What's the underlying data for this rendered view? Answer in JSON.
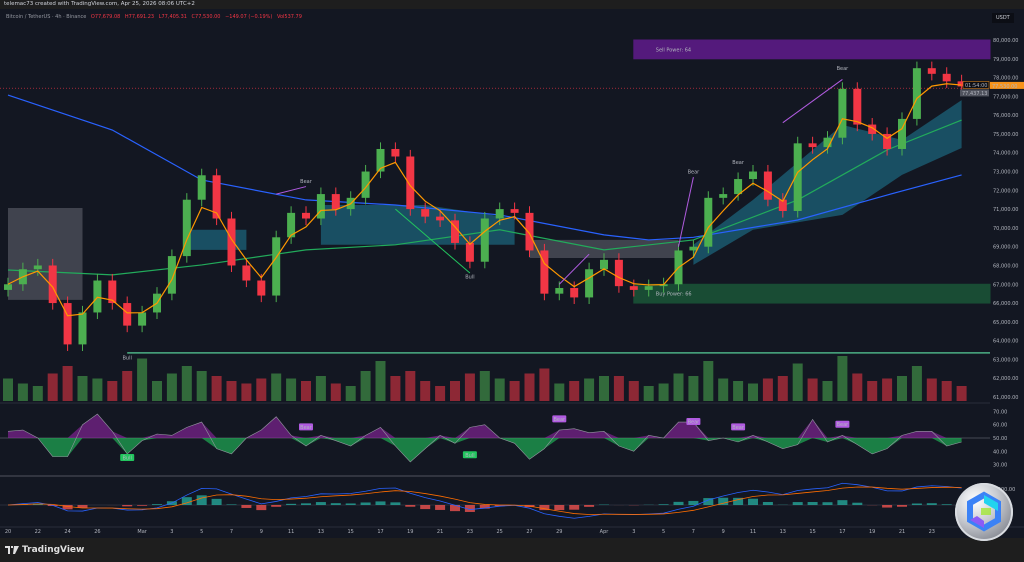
{
  "header": {
    "attribution": "telemac73 created with TradingView.com, Apr 25, 2026 08:06 UTC+2"
  },
  "legend": {
    "symbol": "Bitcoin / TetherUS · 4h · Binance",
    "open": "O77,679.08",
    "high": "H77,691.23",
    "low": "L77,405.31",
    "close": "C77,530.00",
    "change": "−149.07 (−0.19%)",
    "volume": "Vol537.79"
  },
  "price_axis": {
    "currency": "USDT",
    "last_price": "77,530.00",
    "countdown": "01:54:00",
    "marker_price": "77,437.13"
  },
  "footer": {
    "brand": "TradingView"
  },
  "colors": {
    "bg": "#131722",
    "up": "#4caf50",
    "down": "#f23645",
    "fast_ma": "#ff9800",
    "slow_ma_blue": "#2962ff",
    "slow_ma_green": "#22ab5b",
    "cloud": "#1b5e74",
    "bear": "#9c27b0",
    "bull": "#22c55e"
  },
  "chart_data": [
    {
      "type": "candlestick",
      "pane": "price",
      "ylim": [
        61000,
        80000
      ],
      "y_ticks": [
        "80,000.00",
        "79,000.00",
        "78,000.00",
        "77,000.00",
        "76,000.00",
        "75,000.00",
        "74,000.00",
        "73,000.00",
        "72,000.00",
        "71,000.00",
        "70,000.00",
        "69,000.00",
        "68,000.00",
        "67,000.00",
        "66,000.00",
        "65,000.00",
        "64,000.00",
        "63,000.00",
        "62,000.00",
        "61,000.00"
      ],
      "x_ticks": [
        {
          "label": "20",
          "date": "2026-02-20"
        },
        {
          "label": "22",
          "date": "2026-02-22"
        },
        {
          "label": "24",
          "date": "2026-02-24"
        },
        {
          "label": "26",
          "date": "2026-02-26"
        },
        {
          "label": "Mar",
          "date": "2026-03-01"
        },
        {
          "label": "3",
          "date": "2026-03-03"
        },
        {
          "label": "5",
          "date": "2026-03-05"
        },
        {
          "label": "7",
          "date": "2026-03-07"
        },
        {
          "label": "9",
          "date": "2026-03-09"
        },
        {
          "label": "11",
          "date": "2026-03-11"
        },
        {
          "label": "13",
          "date": "2026-03-13"
        },
        {
          "label": "15",
          "date": "2026-03-15"
        },
        {
          "label": "17",
          "date": "2026-03-17"
        },
        {
          "label": "19",
          "date": "2026-03-19"
        },
        {
          "label": "21",
          "date": "2026-03-21"
        },
        {
          "label": "23",
          "date": "2026-03-23"
        },
        {
          "label": "25",
          "date": "2026-03-25"
        },
        {
          "label": "27",
          "date": "2026-03-27"
        },
        {
          "label": "29",
          "date": "2026-03-29"
        },
        {
          "label": "Apr",
          "date": "2026-04-01"
        },
        {
          "label": "3",
          "date": "2026-04-03"
        },
        {
          "label": "5",
          "date": "2026-04-05"
        },
        {
          "label": "7",
          "date": "2026-04-07"
        },
        {
          "label": "9",
          "date": "2026-04-09"
        },
        {
          "label": "11",
          "date": "2026-04-11"
        },
        {
          "label": "13",
          "date": "2026-04-13"
        },
        {
          "label": "15",
          "date": "2026-04-15"
        },
        {
          "label": "17",
          "date": "2026-04-17"
        },
        {
          "label": "19",
          "date": "2026-04-19"
        },
        {
          "label": "21",
          "date": "2026-04-21"
        },
        {
          "label": "23",
          "date": "2026-04-23"
        }
      ],
      "bars_date_close_volume": [
        [
          "2026-02-20",
          67000,
          45
        ],
        [
          "2026-02-21",
          67800,
          35
        ],
        [
          "2026-02-22",
          68000,
          30
        ],
        [
          "2026-02-23",
          66000,
          55
        ],
        [
          "2026-02-24",
          63800,
          70
        ],
        [
          "2026-02-25",
          65500,
          50
        ],
        [
          "2026-02-26",
          67200,
          45
        ],
        [
          "2026-02-27",
          66000,
          40
        ],
        [
          "2026-02-28",
          64800,
          60
        ],
        [
          "2026-03-01",
          65500,
          85
        ],
        [
          "2026-03-02",
          66500,
          40
        ],
        [
          "2026-03-03",
          68500,
          55
        ],
        [
          "2026-03-04",
          71500,
          70
        ],
        [
          "2026-03-05",
          72800,
          60
        ],
        [
          "2026-03-06",
          70500,
          50
        ],
        [
          "2026-03-07",
          68000,
          40
        ],
        [
          "2026-03-08",
          67200,
          35
        ],
        [
          "2026-03-09",
          66400,
          45
        ],
        [
          "2026-03-10",
          69500,
          55
        ],
        [
          "2026-03-11",
          70800,
          45
        ],
        [
          "2026-03-12",
          70500,
          40
        ],
        [
          "2026-03-13",
          71800,
          50
        ],
        [
          "2026-03-14",
          71000,
          35
        ],
        [
          "2026-03-15",
          71600,
          30
        ],
        [
          "2026-03-16",
          73000,
          60
        ],
        [
          "2026-03-17",
          74200,
          80
        ],
        [
          "2026-03-18",
          73800,
          50
        ],
        [
          "2026-03-19",
          71000,
          60
        ],
        [
          "2026-03-20",
          70600,
          40
        ],
        [
          "2026-03-21",
          70400,
          30
        ],
        [
          "2026-03-22",
          69200,
          40
        ],
        [
          "2026-03-23",
          68200,
          55
        ],
        [
          "2026-03-24",
          70500,
          60
        ],
        [
          "2026-03-25",
          71000,
          45
        ],
        [
          "2026-03-26",
          70800,
          40
        ],
        [
          "2026-03-27",
          68800,
          55
        ],
        [
          "2026-03-28",
          66500,
          65
        ],
        [
          "2026-03-29",
          66800,
          35
        ],
        [
          "2026-03-30",
          66300,
          40
        ],
        [
          "2026-03-31",
          67800,
          45
        ],
        [
          "2026-04-01",
          68300,
          50
        ],
        [
          "2026-04-02",
          66900,
          50
        ],
        [
          "2026-04-03",
          66700,
          40
        ],
        [
          "2026-04-04",
          66900,
          30
        ],
        [
          "2026-04-05",
          67000,
          35
        ],
        [
          "2026-04-06",
          68800,
          55
        ],
        [
          "2026-04-07",
          69000,
          50
        ],
        [
          "2026-04-08",
          71600,
          80
        ],
        [
          "2026-04-09",
          71800,
          45
        ],
        [
          "2026-04-10",
          72600,
          40
        ],
        [
          "2026-04-11",
          73000,
          35
        ],
        [
          "2026-04-12",
          71500,
          45
        ],
        [
          "2026-04-13",
          70900,
          50
        ],
        [
          "2026-04-14",
          74500,
          75
        ],
        [
          "2026-04-15",
          74300,
          45
        ],
        [
          "2026-04-16",
          74800,
          40
        ],
        [
          "2026-04-17",
          77400,
          90
        ],
        [
          "2026-04-18",
          75500,
          55
        ],
        [
          "2026-04-19",
          75000,
          40
        ],
        [
          "2026-04-20",
          74200,
          45
        ],
        [
          "2026-04-21",
          75800,
          50
        ],
        [
          "2026-04-22",
          78500,
          70
        ],
        [
          "2026-04-23",
          78200,
          45
        ],
        [
          "2026-04-24",
          77800,
          40
        ],
        [
          "2026-04-25",
          77530,
          30
        ]
      ],
      "ma_blue": [
        [
          "2026-02-20",
          77070
        ],
        [
          "2026-02-27",
          75210
        ],
        [
          "2026-03-05",
          72550
        ],
        [
          "2026-03-12",
          71490
        ],
        [
          "2026-03-18",
          71220
        ],
        [
          "2026-03-25",
          70690
        ],
        [
          "2026-04-01",
          69630
        ],
        [
          "2026-04-04",
          69360
        ],
        [
          "2026-04-07",
          69500
        ],
        [
          "2026-04-14",
          70420
        ],
        [
          "2026-04-20",
          71750
        ],
        [
          "2026-04-25",
          72820
        ]
      ],
      "ma_green": [
        [
          "2026-02-20",
          67760
        ],
        [
          "2026-02-27",
          67500
        ],
        [
          "2026-03-05",
          68030
        ],
        [
          "2026-03-12",
          68830
        ],
        [
          "2026-03-18",
          69100
        ],
        [
          "2026-03-25",
          69900
        ],
        [
          "2026-04-01",
          68830
        ],
        [
          "2026-04-07",
          69360
        ],
        [
          "2026-04-14",
          71490
        ],
        [
          "2026-04-20",
          74150
        ],
        [
          "2026-04-25",
          75740
        ]
      ],
      "cloud_teal": [
        [
          [
            "2026-03-04",
            69900,
            68830
          ],
          [
            "2026-03-08",
            69900,
            68830
          ]
        ],
        [
          [
            "2026-03-13",
            71220,
            69100
          ],
          [
            "2026-03-20",
            71220,
            69100
          ],
          [
            "2026-03-26",
            70500,
            69100
          ]
        ],
        [
          [
            "2026-04-07",
            69100,
            68030
          ],
          [
            "2026-04-11",
            71490,
            69900
          ],
          [
            "2026-04-17",
            75480,
            70690
          ],
          [
            "2026-04-21",
            74680,
            72820
          ],
          [
            "2026-04-25",
            76800,
            74250
          ]
        ]
      ],
      "cloud_gray": [
        [
          [
            "2026-02-20",
            71060,
            66170
          ],
          [
            "2026-02-25",
            71060,
            66170
          ]
        ],
        [
          [
            "2026-03-27",
            69360,
            68400
          ],
          [
            "2026-04-06",
            69360,
            68400
          ]
        ]
      ],
      "zones": [
        {
          "label": "Sell Power: 64",
          "from": "2026-04-03",
          "top": 80000,
          "bottom": 79000,
          "color": "#6a1b9a"
        },
        {
          "label": "Buy Power: 66",
          "from": "2026-04-03",
          "top": 67000,
          "bottom": 66000,
          "color": "#1b5e3a"
        }
      ],
      "support_line": {
        "from": "2026-02-28",
        "price": 63350
      },
      "signals": [
        {
          "label": "Bear",
          "date": "2026-03-12",
          "price": 72400,
          "type": "bear"
        },
        {
          "label": "Bear",
          "date": "2026-04-07",
          "price": 72900,
          "type": "bear"
        },
        {
          "label": "Bear",
          "date": "2026-04-10",
          "price": 73400,
          "type": "bear"
        },
        {
          "label": "Bear",
          "date": "2026-04-17",
          "price": 78400,
          "type": "bear"
        },
        {
          "label": "Bull",
          "date": "2026-03-23",
          "price": 67300,
          "type": "bull"
        },
        {
          "label": "Bull",
          "date": "2026-02-28",
          "price": 63000,
          "type": "bull"
        }
      ],
      "divergences": [
        {
          "from": [
            "2026-03-10",
            71800
          ],
          "to": [
            "2026-03-12",
            72200
          ],
          "type": "bear"
        },
        {
          "from": [
            "2026-04-06",
            69000
          ],
          "to": [
            "2026-04-07",
            72700
          ],
          "type": "bear"
        },
        {
          "from": [
            "2026-04-13",
            75600
          ],
          "to": [
            "2026-04-17",
            77900
          ],
          "type": "bear"
        },
        {
          "from": [
            "2026-03-18",
            71000
          ],
          "to": [
            "2026-03-23",
            67600
          ],
          "type": "bull"
        },
        {
          "from": [
            "2026-03-29",
            67000
          ],
          "to": [
            "2026-03-31",
            68600
          ],
          "type": "bear"
        }
      ]
    },
    {
      "type": "area",
      "pane": "oscillator",
      "ylim": [
        25,
        75
      ],
      "midline": 50,
      "y_ticks": [
        "70.00",
        "60.00",
        "50.00",
        "40.00",
        "30.00"
      ],
      "values": [
        55,
        56,
        50,
        36,
        36,
        60,
        68,
        55,
        38,
        48,
        53,
        52,
        58,
        62,
        42,
        38,
        50,
        56,
        66,
        52,
        44,
        52,
        48,
        44,
        52,
        58,
        44,
        32,
        42,
        52,
        46,
        58,
        60,
        50,
        46,
        34,
        42,
        56,
        57,
        54,
        55,
        44,
        40,
        52,
        50,
        62,
        62,
        48,
        50,
        47,
        52,
        47,
        42,
        45,
        64,
        47,
        52,
        45,
        38,
        42,
        52,
        55,
        55,
        44,
        47
      ],
      "signals": [
        {
          "label": "Bear",
          "date": "2026-03-12",
          "value": 58,
          "type": "bear"
        },
        {
          "label": "Bear",
          "date": "2026-03-29",
          "value": 64,
          "type": "bear"
        },
        {
          "label": "Bear",
          "date": "2026-04-07",
          "value": 62,
          "type": "bear"
        },
        {
          "label": "Bear",
          "date": "2026-04-10",
          "value": 58,
          "type": "bear"
        },
        {
          "label": "Bear",
          "date": "2026-04-17",
          "value": 60,
          "type": "bear"
        },
        {
          "label": "Bull",
          "date": "2026-02-28",
          "value": 35,
          "type": "bull"
        },
        {
          "label": "Bull",
          "date": "2026-03-23",
          "value": 37,
          "type": "bull"
        }
      ]
    },
    {
      "type": "bar",
      "pane": "macd",
      "y_ticks": [
        "1,000.00"
      ]
    }
  ]
}
